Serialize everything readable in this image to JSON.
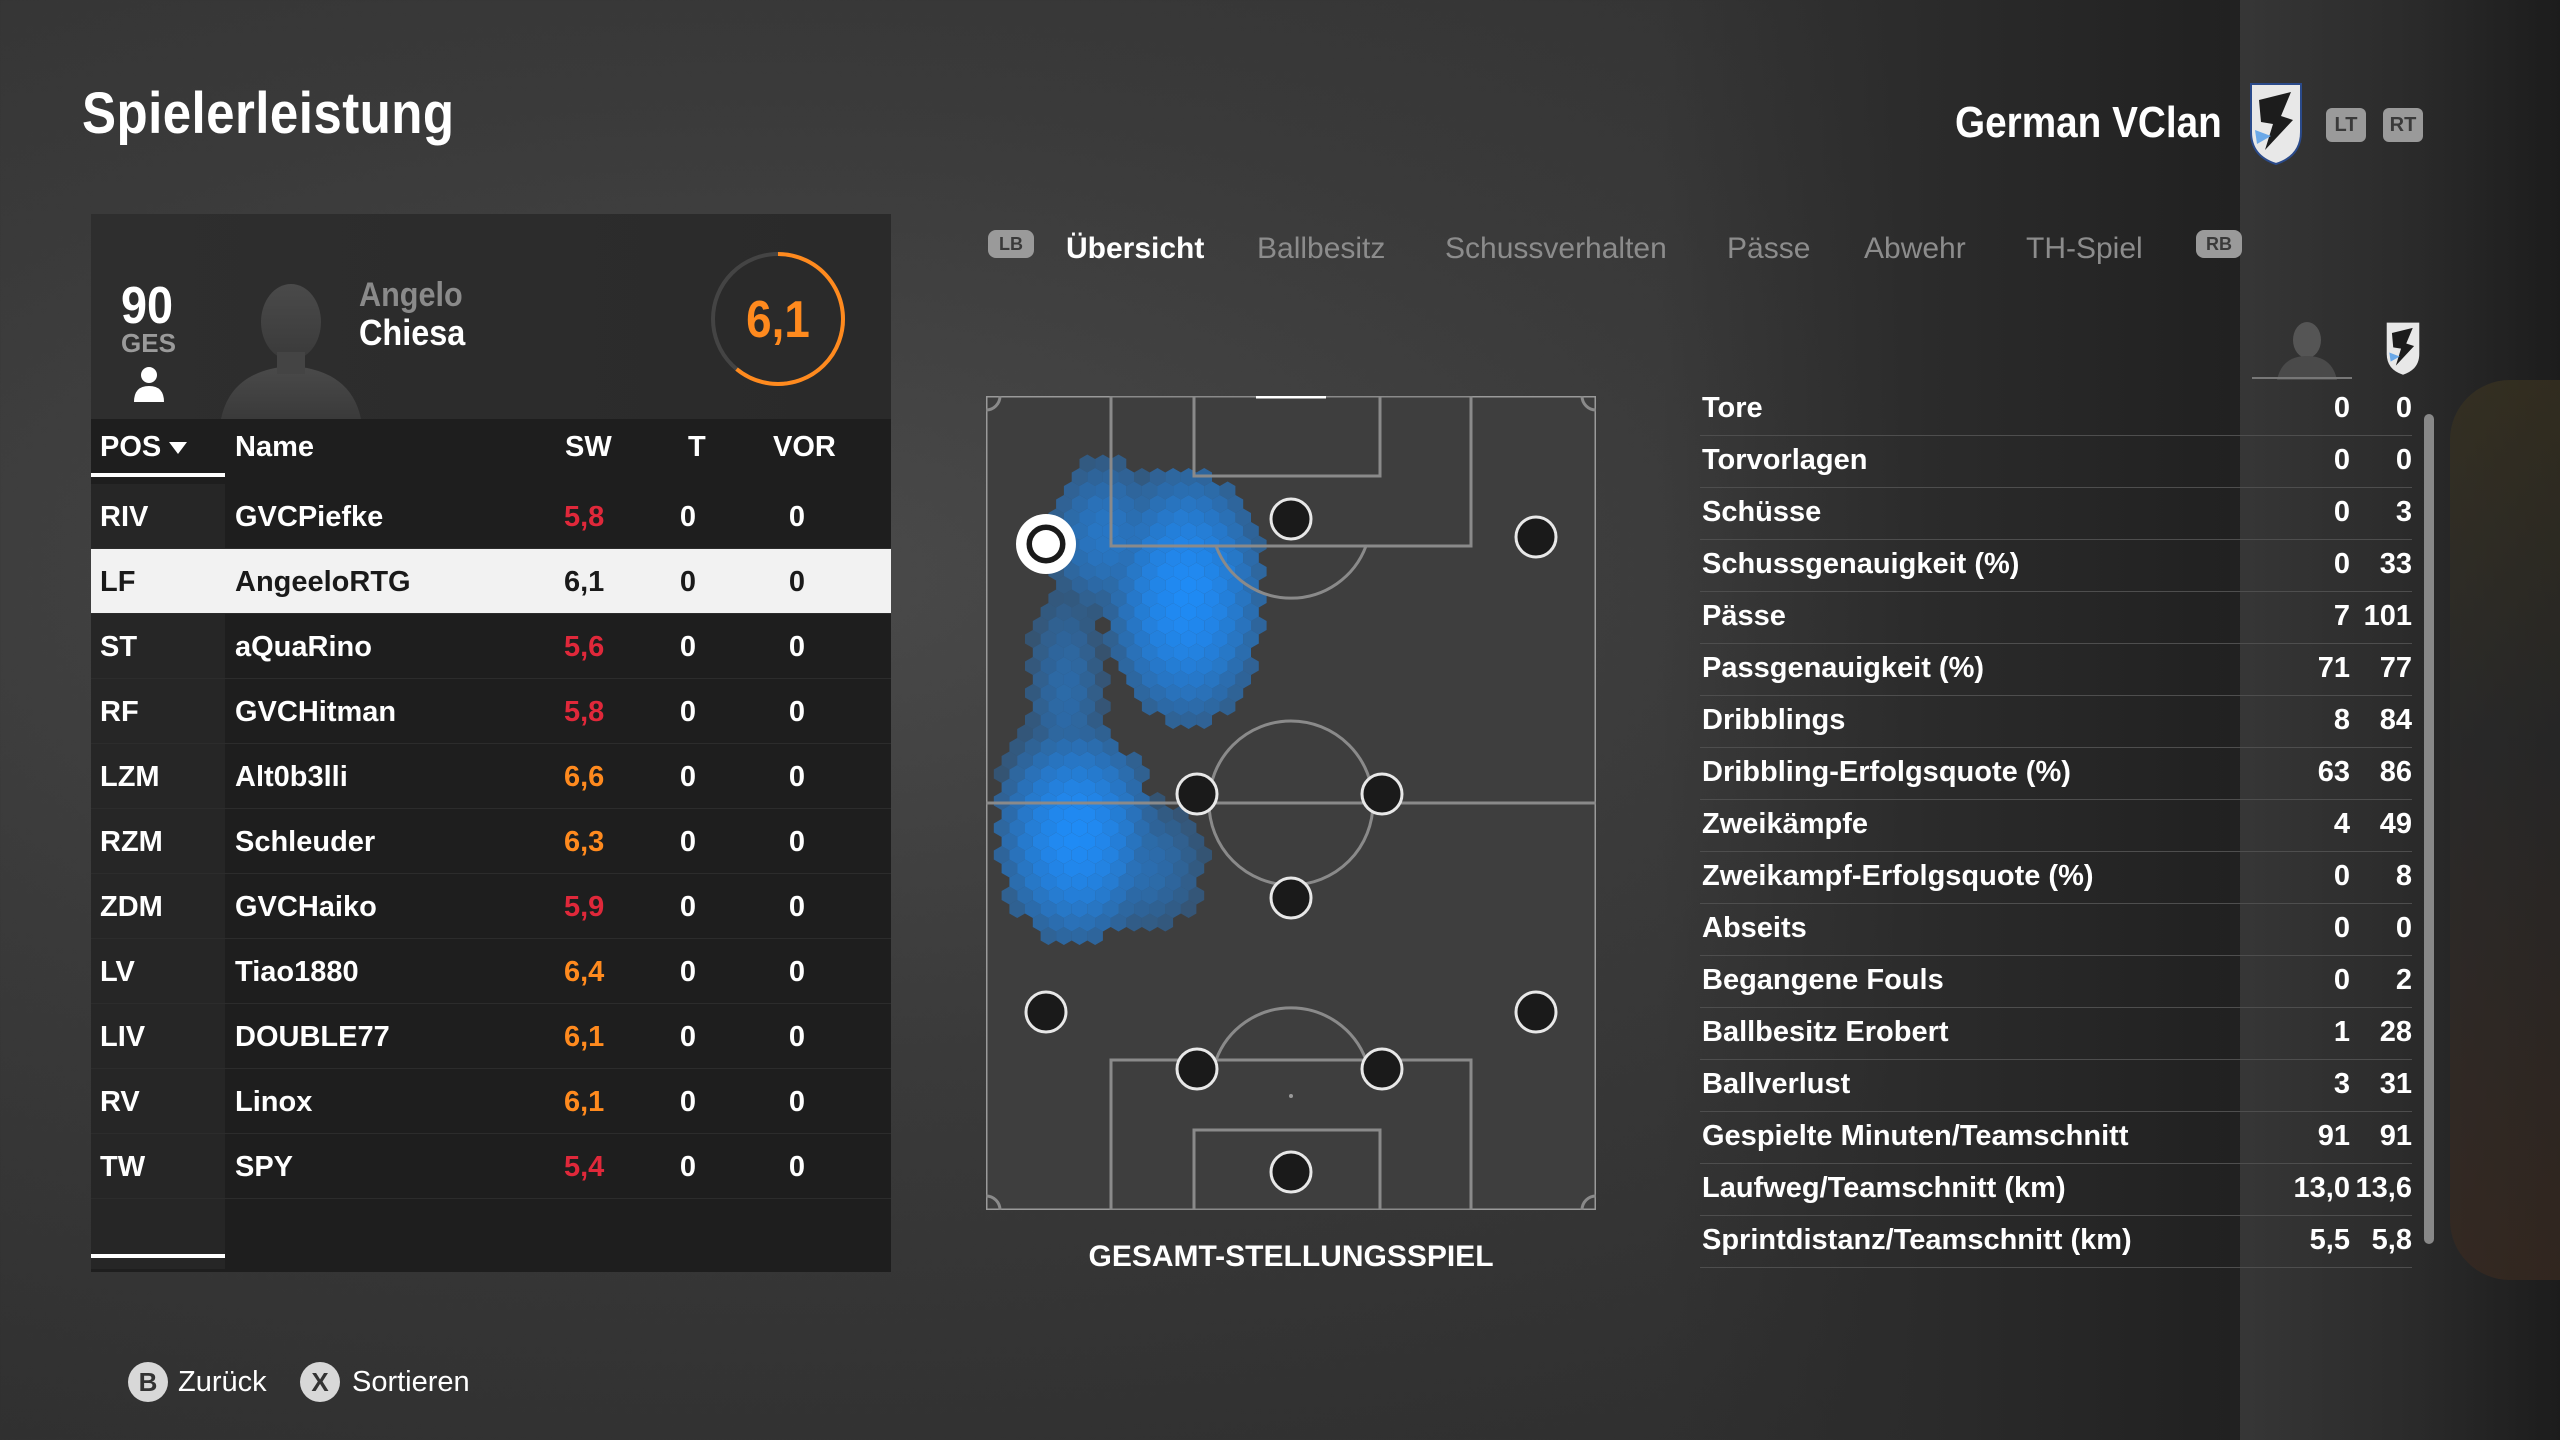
{
  "page": {
    "title": "Spielerleistung"
  },
  "team": {
    "name": "German VClan",
    "lt_label": "LT",
    "rt_label": "RT"
  },
  "player": {
    "overall": "90",
    "overall_label": "GES",
    "first_name": "Angelo",
    "last_name": "Chiesa",
    "rating": "6,1",
    "rating_color": "#ff8a1e"
  },
  "table": {
    "headers": {
      "pos": "POS",
      "name": "Name",
      "rating": "SW",
      "goals": "T",
      "assists": "VOR"
    },
    "rows": [
      {
        "pos": "RIV",
        "name": "GVCPiefke",
        "rating": "5,8",
        "goals": "0",
        "assists": "0",
        "rating_color": "#e0283a"
      },
      {
        "pos": "LF",
        "name": "AngeeloRTG",
        "rating": "6,1",
        "goals": "0",
        "assists": "0",
        "rating_color": "#1a1a1a"
      },
      {
        "pos": "ST",
        "name": "aQuaRino",
        "rating": "5,6",
        "goals": "0",
        "assists": "0",
        "rating_color": "#e0283a"
      },
      {
        "pos": "RF",
        "name": "GVCHitman",
        "rating": "5,8",
        "goals": "0",
        "assists": "0",
        "rating_color": "#e0283a"
      },
      {
        "pos": "LZM",
        "name": "Alt0b3lli",
        "rating": "6,6",
        "goals": "0",
        "assists": "0",
        "rating_color": "#ff8a1e"
      },
      {
        "pos": "RZM",
        "name": "Schleuder",
        "rating": "6,3",
        "goals": "0",
        "assists": "0",
        "rating_color": "#ff8a1e"
      },
      {
        "pos": "ZDM",
        "name": "GVCHaiko",
        "rating": "5,9",
        "goals": "0",
        "assists": "0",
        "rating_color": "#e0283a"
      },
      {
        "pos": "LV",
        "name": "Tiao1880",
        "rating": "6,4",
        "goals": "0",
        "assists": "0",
        "rating_color": "#ff8a1e"
      },
      {
        "pos": "LIV",
        "name": "DOUBLE77",
        "rating": "6,1",
        "goals": "0",
        "assists": "0",
        "rating_color": "#ff8a1e"
      },
      {
        "pos": "RV",
        "name": "Linox",
        "rating": "6,1",
        "goals": "0",
        "assists": "0",
        "rating_color": "#ff8a1e"
      },
      {
        "pos": "TW",
        "name": "SPY",
        "rating": "5,4",
        "goals": "0",
        "assists": "0",
        "rating_color": "#e0283a"
      }
    ],
    "selected_index": 1
  },
  "tabs": {
    "lb_label": "LB",
    "rb_label": "RB",
    "items": [
      {
        "label": "Übersicht",
        "active": true
      },
      {
        "label": "Ballbesitz",
        "active": false
      },
      {
        "label": "Schussverhalten",
        "active": false
      },
      {
        "label": "Pässe",
        "active": false
      },
      {
        "label": "Abwehr",
        "active": false
      },
      {
        "label": "TH-Spiel",
        "active": false
      }
    ]
  },
  "pitch": {
    "caption": "GESAMT-STELLUNGSSPIEL",
    "heat_color": "#1e8fff"
  },
  "stats": [
    {
      "label": "Tore",
      "player": "0",
      "team": "0"
    },
    {
      "label": "Torvorlagen",
      "player": "0",
      "team": "0"
    },
    {
      "label": "Schüsse",
      "player": "0",
      "team": "3"
    },
    {
      "label": "Schussgenauigkeit (%)",
      "player": "0",
      "team": "33"
    },
    {
      "label": "Pässe",
      "player": "7",
      "team": "101"
    },
    {
      "label": "Passgenauigkeit (%)",
      "player": "71",
      "team": "77"
    },
    {
      "label": "Dribblings",
      "player": "8",
      "team": "84"
    },
    {
      "label": "Dribbling-Erfolgsquote (%)",
      "player": "63",
      "team": "86"
    },
    {
      "label": "Zweikämpfe",
      "player": "4",
      "team": "49"
    },
    {
      "label": "Zweikampf-Erfolgsquote (%)",
      "player": "0",
      "team": "8"
    },
    {
      "label": "Abseits",
      "player": "0",
      "team": "0"
    },
    {
      "label": "Begangene Fouls",
      "player": "0",
      "team": "2"
    },
    {
      "label": "Ballbesitz Erobert",
      "player": "1",
      "team": "28"
    },
    {
      "label": "Ballverlust",
      "player": "3",
      "team": "31"
    },
    {
      "label": "Gespielte Minuten/Teamschnitt",
      "player": "91",
      "team": "91"
    },
    {
      "label": "Laufweg/Teamschnitt (km)",
      "player": "13,0",
      "team": "13,6"
    },
    {
      "label": "Sprintdistanz/Teamschnitt (km)",
      "player": "5,5",
      "team": "5,8"
    }
  ],
  "footer": {
    "back_button": "B",
    "back_label": "Zurück",
    "sort_button": "X",
    "sort_label": "Sortieren"
  }
}
